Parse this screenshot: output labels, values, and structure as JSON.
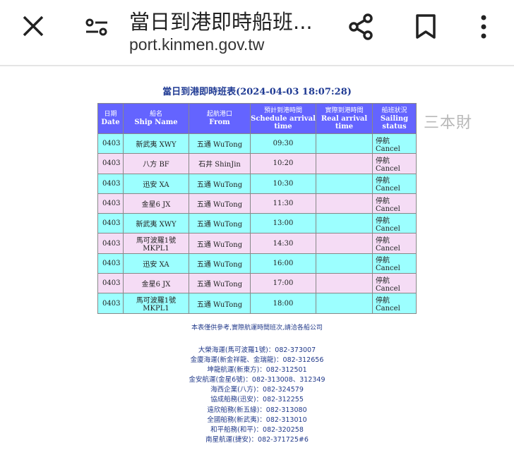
{
  "browser": {
    "title": "當日到港即時船班...",
    "url": "port.kinmen.gov.tw",
    "icons": [
      "close-icon",
      "tune-icon",
      "share-icon",
      "bookmark-icon",
      "more-vert-icon"
    ]
  },
  "page": {
    "title": "當日到港即時班表(2024-04-03 18:07:28)",
    "headers": [
      {
        "zh": "日期",
        "en": "Date"
      },
      {
        "zh": "船名",
        "en": "Ship Name"
      },
      {
        "zh": "起航港口",
        "en": "From"
      },
      {
        "zh": "預計到港時間",
        "en": "Schedule arrival time"
      },
      {
        "zh": "實際到港時間",
        "en": "Real arrival time"
      },
      {
        "zh": "船班狀況",
        "en": "Sailing status"
      }
    ],
    "watermark": "三本財",
    "rows": [
      {
        "date": "0403",
        "ship": "新武夷 XWY",
        "from": "五通 WuTong",
        "scheduled": "09:30",
        "actual": "",
        "status": "停航 Cancel"
      },
      {
        "date": "0403",
        "ship": "八方 BF",
        "from": "石井 ShinJin",
        "scheduled": "10:20",
        "actual": "",
        "status": "停航 Cancel"
      },
      {
        "date": "0403",
        "ship": "迅安 XA",
        "from": "五通 WuTong",
        "scheduled": "10:30",
        "actual": "",
        "status": "停航 Cancel"
      },
      {
        "date": "0403",
        "ship": "金星6 JX",
        "from": "五通 WuTong",
        "scheduled": "11:30",
        "actual": "",
        "status": "停航 Cancel"
      },
      {
        "date": "0403",
        "ship": "新武夷 XWY",
        "from": "五通 WuTong",
        "scheduled": "13:00",
        "actual": "",
        "status": "停航 Cancel"
      },
      {
        "date": "0403",
        "ship": "馬可波羅1號 MKPL1",
        "from": "五通 WuTong",
        "scheduled": "14:30",
        "actual": "",
        "status": "停航 Cancel"
      },
      {
        "date": "0403",
        "ship": "迅安 XA",
        "from": "五通 WuTong",
        "scheduled": "16:00",
        "actual": "",
        "status": "停航 Cancel"
      },
      {
        "date": "0403",
        "ship": "金星6 JX",
        "from": "五通 WuTong",
        "scheduled": "17:00",
        "actual": "",
        "status": "停航 Cancel"
      },
      {
        "date": "0403",
        "ship": "馬可波羅1號 MKPL1",
        "from": "五通 WuTong",
        "scheduled": "18:00",
        "actual": "",
        "status": "停航 Cancel"
      }
    ],
    "note": "本表僅供參考,實際航運時間班次,請洽各船公司",
    "contacts": [
      "大榮海運(馬可波羅1號)：082-373007",
      "金廈海運(新金祥龍、金瑞龍)：082-312656",
      "坤龍航運(新東方)：082-312501",
      "金安航運(金星6號)：082-313008、312349",
      "海西企業(八方)：082-324579",
      "協成船務(迅安)：082-312255",
      "遠欣船務(新五緣)：082-313080",
      "全國船務(新武夷)：082-313010",
      "和平船務(和平)：082-320258",
      "南星航運(捷安)：082-371725#6"
    ],
    "colors": {
      "header": "#6464ff",
      "row_a": "#9cffff",
      "row_b": "#f5dcf5",
      "title": "#1f3a93"
    }
  }
}
